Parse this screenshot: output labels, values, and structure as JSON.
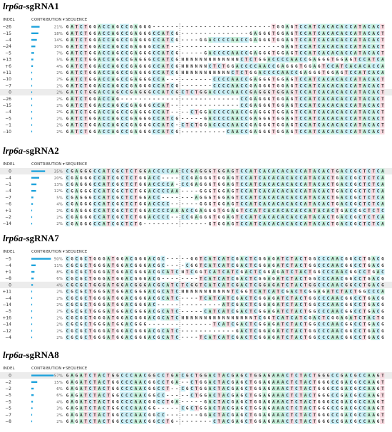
{
  "headers": {
    "indel": "INDEL",
    "contribution": "CONTRIBUTION ▾",
    "sequence": "SEQUENCE"
  },
  "panels": [
    {
      "gene": "lrp6a",
      "guide": "-sgRNA1",
      "rows": [
        {
          "indel": "−26",
          "contribution": 21,
          "label": "21%",
          "left": "GATCTGGACCAGCCGAGGG------",
          "right": "--------------------TGGAGTCCATCACACACCATACACT"
        },
        {
          "indel": "−15",
          "contribution": 18,
          "label": "18%",
          "left": "GATCTGGACCAGCCGAGGGCCATCG",
          "right": "---------------GAGGGTGGAGTCCATCACACACCATACACT"
        },
        {
          "indel": "−4",
          "contribution": 14,
          "label": "14%",
          "left": "GATCTGGACCAGCCGAGGGCCATCG",
          "right": "----GGACCCCAACCGAGGGTGGAGTCCATCACACACCATACACT"
        },
        {
          "indel": "−24",
          "contribution": 10,
          "label": "10%",
          "left": "GATCTGGACCAGCCGAGGGCCAT--",
          "right": "----------------------GAGTCCATCACACACCATACACT"
        },
        {
          "indel": "−5",
          "contribution": 7,
          "label": "7%",
          "left": "GATCTGGACCAGCCGAGGGCCATCG",
          "right": "-----GACCCCAACCGAGGGTGGAGTCCATCACACACCATACACT"
        },
        {
          "indel": "+13",
          "contribution": 5,
          "label": "5%",
          "left": "GATCTGGACCAGCCGAGGGCCATCG",
          "right": "NNNNNNNNNNNNNCTCTGGACCCCAACCGAGGGTGGAGTCCATCA"
        },
        {
          "indel": "+6",
          "contribution": 4,
          "label": "4%",
          "left": "GATCTGGACCAGCCGAGGGCCATCG",
          "right": "NNNNNNCTCTGGACCCCAACCGAGGGTGGAGTCCATCACACACCA"
        },
        {
          "indel": "+11",
          "contribution": 2,
          "label": "2%",
          "left": "GATCTGGACCAGCCGAGGGCCATCG",
          "right": "NNNNNNNNNNNCTCTGGACCCCAACCGAGGGTGGAGTCCATCACA"
        },
        {
          "indel": "−10",
          "contribution": 2,
          "label": "2%",
          "left": "GATCTGGACCAGCCGAGGGCCA---",
          "right": "-------CCCCAACCGAGGGTGGAGTCCATCACACACCATACACT"
        },
        {
          "indel": "−7",
          "contribution": 2,
          "label": "2%",
          "left": "GATCTGGACCAGCCGAGGGCCATCG",
          "right": "-------CCCCAACCGAGGGTGGAGTCCATCACACACCATACACT"
        },
        {
          "indel": "0",
          "contribution": 2,
          "label": "2%",
          "left": "GATCTGGACCAGCCGAGGGCCATCG",
          "right": "CTCTGGACCCCAACCGAGGGTGGAGTCCATCACACACCATACACT"
        },
        {
          "indel": "−26",
          "contribution": 2,
          "label": "2%",
          "left": "GATCTGGACCAG-------------",
          "right": "-------------CCGAGGGTGGAGTCCATCACACACCATACACT"
        },
        {
          "indel": "−15",
          "contribution": 2,
          "label": "2%",
          "left": "GATCTGGACCAGCCGAGGGCCAT--",
          "right": "-------------CCGAGGGTGGAGTCCATCACACACCATACACT"
        },
        {
          "indel": "−4",
          "contribution": 2,
          "label": "2%",
          "left": "GATCTGGACCAGCCGAGGGCCAT--",
          "right": "--CTGGACCCCAACCGAGGGTGGAGTCCATCACACACCATACACT"
        },
        {
          "indel": "−5",
          "contribution": 2,
          "label": "2%",
          "left": "GATCTGGACCAGCCGAGGGCCATCG",
          "right": "-----GACCCCAACCGAGGGTGGAGTCCATCACACACCATACACT"
        },
        {
          "indel": "−1",
          "contribution": 2,
          "label": "2%",
          "left": "GATCTGGACCAGCCGAGGGCCATC-",
          "right": "CTCTGGACCCCAACCGAGGGTGGAGTCCATCACACACCATACACT"
        },
        {
          "indel": "−10",
          "contribution": 2,
          "label": "2%",
          "left": "GATCTGGACCAGCCGAGGGCCATCG",
          "right": "----------CAACCGAGGGTGGAGTCCATCACACACCATACACT"
        }
      ]
    },
    {
      "gene": "lrp6a",
      "guide": "-sgRNA2",
      "rows": [
        {
          "indel": "0",
          "contribution": 35,
          "label": "35%",
          "left": "CGAGGGCCATCGCTCTGGACCCCAA",
          "right": "CCGAGGGTGGAGTCCATCACACACACCATACACTGACCGCTCTCA"
        },
        {
          "indel": "−4",
          "contribution": 20,
          "label": "20%",
          "left": "CGAGGGCCATCGCTCTGGACC----",
          "right": "CCGAGGGTGGAGTCCATCACACACACCATACACTGACCGCTCTCA"
        },
        {
          "indel": "−1",
          "contribution": 13,
          "label": "13%",
          "left": "CGAGGGCCATCGCTCTGGACCCCA-",
          "right": "CCGAGGGTGGAGTCCATCACACACACCATACACTGACCGCTCTCA"
        },
        {
          "indel": "−4",
          "contribution": 12,
          "label": "12%",
          "left": "CGAGGGCCATCGCTCTGGACCCCAA",
          "right": "----GGGTGGAGTCCATCACACACACCATACACTGACCGCTCTCA"
        },
        {
          "indel": "−7",
          "contribution": 5,
          "label": "5%",
          "left": "CGAGGGCCATCGCTCTGGACC----",
          "right": "---AGGGTGGAGTCCATCACACACACCATACACTGACCGCTCTCA"
        },
        {
          "indel": "−6",
          "contribution": 4,
          "label": "4%",
          "left": "CGAGGGCCATCGCTCTGGACCCC--",
          "right": "----GGGTGGAGTCCATCACACACACCATACACTGACCGCTCTCA"
        },
        {
          "indel": "+1",
          "contribution": 2,
          "label": "2%",
          "left": "CGAGGGCCATCGCTCTGGACCCCAA",
          "right": "ACCGAGGGTGGAGTCCATCACACACACCATACACTGACCGCTCTC"
        },
        {
          "indel": "−2",
          "contribution": 2,
          "label": "2%",
          "left": "CGAGGGCCATCGCTCTGGACCCC--",
          "right": "CCGAGGGTGGAGTCCATCACACACACCATACACTGACCGCTCTCA"
        },
        {
          "indel": "−14",
          "contribution": 2,
          "label": "2%",
          "left": "CGAGGGCCATCGCTCTG--------",
          "right": "------GTGGAGTCCATCACACACACCATACACTGACCGCTCTCA"
        }
      ]
    },
    {
      "gene": "lrp6a",
      "guide": "-sgRNA7",
      "rows": [
        {
          "indel": "−5",
          "contribution": 50,
          "label": "50%",
          "left": "CGCGCTGGGATGGACGGGACGC---",
          "right": "--GGTCATCATCGACTCGGAGATCTACTGGCCCAACGGCCTGACG"
        },
        {
          "indel": "−4",
          "contribution": 11,
          "label": "11%",
          "left": "CGCGCTGGGATGGACGGGACGC---",
          "right": "-CGGTCATCATCGACTCGGAGATCTACTGGCCCAACGGCCTGACG"
        },
        {
          "indel": "+1",
          "contribution": 8,
          "label": "8%",
          "left": "CGCGCTGGGATGGACGGGACGCATC",
          "right": "NTCGGTCATCATCGACTCGGAGATCTACTGGCCCAACGGCCTGAC"
        },
        {
          "indel": "−8",
          "contribution": 6,
          "label": "6%",
          "left": "CGCGCTGGGATGGACGGGACG----",
          "right": "----TCATCATCGACTCGGAGATCTACTGGCCCAACGGCCTGACG"
        },
        {
          "indel": "0",
          "contribution": 4,
          "label": "4%",
          "left": "CGCGCTGGGATGGACGGGACGCATC",
          "right": "TCGGTCATCATCGACTCGGAGATCTACTGGCCCAACGGCCTGACG"
        },
        {
          "indel": "+11",
          "contribution": 2,
          "label": "2%",
          "left": "CGCGCTGGGATGGACGGGACGCATC",
          "right": "NNNNNNNNNNNTCGGTCATCATCGACTCGGAGATCTACTGGCCCA"
        },
        {
          "indel": "−4",
          "contribution": 2,
          "label": "2%",
          "left": "CGCGCTGGGATGGACGGGACGCATC",
          "right": "----TCATCATCGACTCGGAGATCTACTGGCCCAACGGCCTGACG"
        },
        {
          "indel": "−14",
          "contribution": 2,
          "label": "2%",
          "left": "CGCGCTGGGATGGACGGGAC-----",
          "right": "---------ATCGACTCGGAGATCTACTGGCCCAACGGCCTGACG"
        },
        {
          "indel": "−5",
          "contribution": 2,
          "label": "2%",
          "left": "CGCGCTGGGATGGACGGGACGCATC",
          "right": "-----CATCATCGACTCGGAGATCTACTGGCCCAACGGCCTGACG"
        },
        {
          "indel": "+16",
          "contribution": 2,
          "label": "2%",
          "left": "CGCGCTGGGATGGACGGGACGCATC",
          "right": "NNNNNNNNNNNNNNNNTCGGTCATCATCGACTCGGAGATCTACTG"
        },
        {
          "indel": "−14",
          "contribution": 2,
          "label": "2%",
          "left": "CGCGCTGGGATGGACGGG-------",
          "right": "-------TCATCGACTCGGAGATCTACTGGCCCAACGGCCTGACG"
        },
        {
          "indel": "−12",
          "contribution": 2,
          "label": "2%",
          "left": "CGCGCTGGGATGGACGGGACGCATC",
          "right": "------------GACTCGGAGATCTACTGGCCCAACGGCCTGACG"
        },
        {
          "indel": "−4",
          "contribution": 2,
          "label": "2%",
          "left": "CGCGCTGGGATGGACGGGACGCATC",
          "right": "----TCATCATCGACTCGGAGATCTACTGGCCCAACGGCCTGACG"
        }
      ]
    },
    {
      "gene": "lrp6a",
      "guide": "-sgRNA8",
      "rows": [
        {
          "indel": "0",
          "contribution": 57,
          "label": "57%",
          "left": "GAGATCTACTGGCCCAACGGCCTGA",
          "right": "CGCTGGACTACGAGCTGGAGAAACTCTACTGGGCCGACGCCAAGT"
        },
        {
          "indel": "−2",
          "contribution": 15,
          "label": "15%",
          "left": "GAGATCTACTGGCCCAACGGCCTGA",
          "right": "--CTGGACTACGAGCTGGAGAAACTCTACTGGGCCGACGCCAAGT"
        },
        {
          "indel": "−2",
          "contribution": 6,
          "label": "6%",
          "left": "GAGATCTACTGGCCCAACGGCCT--",
          "right": "CGCTGGACTACGAGCTGGAGAAACTCTACTGGGCCGACGCCAAGT"
        },
        {
          "indel": "−5",
          "contribution": 6,
          "label": "6%",
          "left": "GAGATCTACTGGCCCAACGGCC---",
          "right": "--CTGGACTACGAGCTGGAGAAACTCTACTGGGCCGACGCCAAGT"
        },
        {
          "indel": "−5",
          "contribution": 4,
          "label": "4%",
          "left": "GAGATCTACTGGCCCAACGGCCTGA",
          "right": "-----GACTACGAGCTGGAGAAACTCTACTGGGCCGACGCCAAGT"
        },
        {
          "indel": "−5",
          "contribution": 3,
          "label": "3%",
          "left": "GAGATCTACTGGCCCAACGG-----",
          "right": "CGCTGGACTACGAGCTGGAGAAACTCTACTGGGCCGACGCCAAGT"
        },
        {
          "indel": "−7",
          "contribution": 2,
          "label": "2%",
          "left": "GAGATCTACTGGCCCAACGGCC---",
          "right": "----GGACTACGAGCTGGAGAAACTCTACTGGGCCGACGCCAAGT"
        },
        {
          "indel": "−8",
          "contribution": 2,
          "label": "2%",
          "left": "GAGATCTACTGGCCCAACGGCCTG-",
          "right": "-------CTACGAGCTGGAGAAACTCTACTGGGCCGACGCCAAGT"
        }
      ]
    }
  ]
}
